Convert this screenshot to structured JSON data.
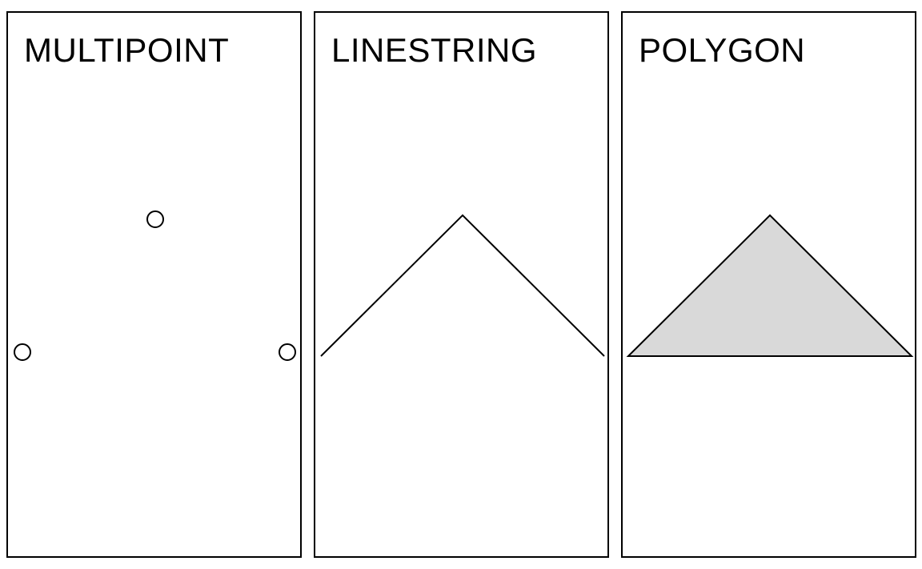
{
  "panels": [
    {
      "title": "MULTIPOINT",
      "geometry": "multipoint"
    },
    {
      "title": "LINESTRING",
      "geometry": "linestring"
    },
    {
      "title": "POLYGON",
      "geometry": "polygon"
    }
  ],
  "colors": {
    "stroke": "#000000",
    "polygon_fill": "#d9d9d9",
    "background": "#ffffff"
  }
}
